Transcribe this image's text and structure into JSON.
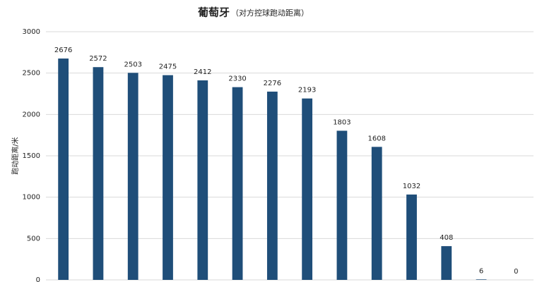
{
  "chart_data": {
    "type": "bar",
    "title": "葡萄牙",
    "subtitle": "（对方控球跑动距离）",
    "y_label": "跑动距离/米",
    "values": [
      2676,
      2572,
      2503,
      2475,
      2412,
      2330,
      2276,
      2193,
      1803,
      1608,
      1032,
      408,
      6,
      0
    ],
    "color": "#1f4e79",
    "ylim": [
      0,
      3000
    ],
    "yticks": [
      0,
      500,
      1000,
      1500,
      2000,
      2500,
      3000
    ],
    "grid": true
  }
}
